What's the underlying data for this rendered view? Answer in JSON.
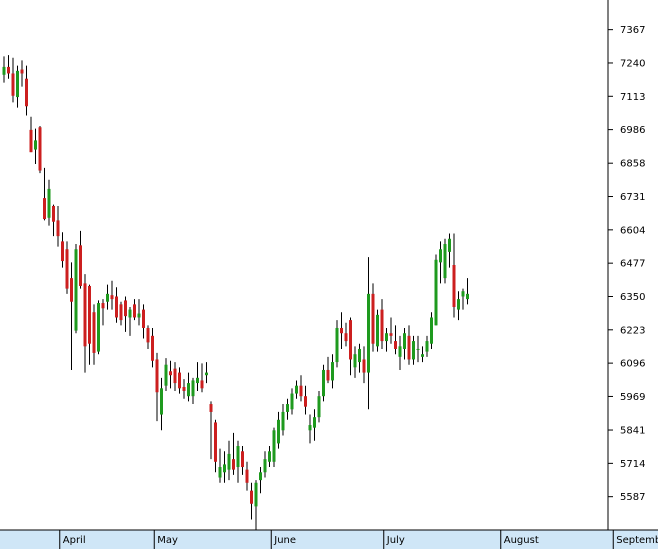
{
  "colors": {
    "background": "#ffffff",
    "up": "#1e9a1e",
    "down": "#cc1f1f",
    "axis": "#000000",
    "month_band": "#cfe6f7"
  },
  "chart_data": {
    "type": "candlestick",
    "title": "",
    "xlabel": "",
    "ylabel": "",
    "ylim": [
      5460,
      7480
    ],
    "grid": false,
    "y_ticks": [
      "7367",
      "7240",
      "7113",
      "6986",
      "6858",
      "6731",
      "6604",
      "6477",
      "6350",
      "6223",
      "6096",
      "5969",
      "5841",
      "5714",
      "5587"
    ],
    "months": [
      {
        "label": "",
        "start": 0
      },
      {
        "label": "April",
        "start": 13
      },
      {
        "label": "May",
        "start": 34
      },
      {
        "label": "June",
        "start": 60
      },
      {
        "label": "July",
        "start": 85
      },
      {
        "label": "August",
        "start": 111
      },
      {
        "label": "September",
        "start": 136
      }
    ],
    "candles": [
      [
        7195,
        7265,
        7165,
        7225
      ],
      [
        7225,
        7270,
        7180,
        7200
      ],
      [
        7200,
        7260,
        7090,
        7115
      ],
      [
        7110,
        7230,
        7070,
        7210
      ],
      [
        7215,
        7250,
        7150,
        7200
      ],
      [
        7180,
        7230,
        7040,
        7075
      ],
      [
        6985,
        7035,
        6900,
        6900
      ],
      [
        6910,
        6990,
        6855,
        6945
      ],
      [
        6995,
        7000,
        6820,
        6830
      ],
      [
        6725,
        6840,
        6640,
        6645
      ],
      [
        6650,
        6795,
        6620,
        6760
      ],
      [
        6695,
        6700,
        6580,
        6635
      ],
      [
        6640,
        6695,
        6540,
        6580
      ],
      [
        6560,
        6595,
        6460,
        6485
      ],
      [
        6530,
        6560,
        6360,
        6380
      ],
      [
        6420,
        6480,
        6070,
        6330
      ],
      [
        6220,
        6550,
        6210,
        6530
      ],
      [
        6545,
        6600,
        6380,
        6390
      ],
      [
        6400,
        6435,
        6060,
        6160
      ],
      [
        6390,
        6395,
        6090,
        6170
      ],
      [
        6290,
        6320,
        6090,
        6135
      ],
      [
        6140,
        6335,
        6130,
        6325
      ],
      [
        6325,
        6340,
        6240,
        6305
      ],
      [
        6330,
        6395,
        6300,
        6360
      ],
      [
        6355,
        6410,
        6300,
        6340
      ],
      [
        6350,
        6385,
        6250,
        6270
      ],
      [
        6320,
        6330,
        6240,
        6260
      ],
      [
        6335,
        6350,
        6215,
        6275
      ],
      [
        6270,
        6310,
        6200,
        6300
      ],
      [
        6320,
        6340,
        6260,
        6270
      ],
      [
        6270,
        6340,
        6240,
        6285
      ],
      [
        6300,
        6320,
        6190,
        6230
      ],
      [
        6230,
        6240,
        6150,
        6175
      ],
      [
        6200,
        6230,
        6080,
        6105
      ],
      [
        6110,
        6135,
        5875,
        5985
      ],
      [
        5900,
        6040,
        5840,
        6000
      ],
      [
        6010,
        6115,
        5990,
        6090
      ],
      [
        6065,
        6105,
        6000,
        6050
      ],
      [
        6075,
        6100,
        5990,
        6020
      ],
      [
        6060,
        6080,
        5980,
        6000
      ],
      [
        6005,
        6035,
        5960,
        5990
      ],
      [
        5970,
        6060,
        5950,
        6020
      ],
      [
        5970,
        6040,
        5940,
        6030
      ],
      [
        6020,
        6100,
        5990,
        6040
      ],
      [
        6030,
        6095,
        5985,
        6000
      ],
      [
        6050,
        6100,
        6020,
        6060
      ],
      [
        5940,
        5950,
        5730,
        5910
      ],
      [
        5870,
        5880,
        5680,
        5720
      ],
      [
        5660,
        5770,
        5640,
        5700
      ],
      [
        5680,
        5760,
        5640,
        5710
      ],
      [
        5690,
        5800,
        5650,
        5750
      ],
      [
        5730,
        5830,
        5670,
        5690
      ],
      [
        5700,
        5800,
        5640,
        5780
      ],
      [
        5760,
        5780,
        5670,
        5700
      ],
      [
        5690,
        5720,
        5610,
        5640
      ],
      [
        5610,
        5640,
        5500,
        5560
      ],
      [
        5550,
        5650,
        5460,
        5640
      ],
      [
        5650,
        5700,
        5600,
        5680
      ],
      [
        5680,
        5760,
        5660,
        5730
      ],
      [
        5720,
        5780,
        5700,
        5760
      ],
      [
        5720,
        5850,
        5700,
        5840
      ],
      [
        5790,
        5910,
        5770,
        5880
      ],
      [
        5840,
        5940,
        5820,
        5910
      ],
      [
        5910,
        5960,
        5880,
        5940
      ],
      [
        5920,
        6000,
        5900,
        5980
      ],
      [
        5980,
        6030,
        5960,
        6010
      ],
      [
        6010,
        6050,
        5950,
        5970
      ],
      [
        5970,
        6010,
        5900,
        5930
      ],
      [
        5840,
        5900,
        5790,
        5860
      ],
      [
        5850,
        5920,
        5800,
        5890
      ],
      [
        5890,
        5990,
        5870,
        5970
      ],
      [
        5970,
        6090,
        5950,
        6070
      ],
      [
        6070,
        6120,
        6020,
        6030
      ],
      [
        6030,
        6130,
        6000,
        6100
      ],
      [
        6100,
        6260,
        6080,
        6230
      ],
      [
        6230,
        6290,
        6150,
        6210
      ],
      [
        6210,
        6250,
        6160,
        6180
      ],
      [
        6260,
        6270,
        6050,
        6110
      ],
      [
        6080,
        6160,
        6040,
        6130
      ],
      [
        6100,
        6170,
        6060,
        6150
      ],
      [
        6110,
        6160,
        6020,
        6060
      ],
      [
        6060,
        6500,
        5920,
        6360
      ],
      [
        6360,
        6400,
        6140,
        6170
      ],
      [
        6160,
        6300,
        6140,
        6280
      ],
      [
        6300,
        6340,
        6150,
        6180
      ],
      [
        6180,
        6230,
        6140,
        6210
      ],
      [
        6210,
        6270,
        6170,
        6200
      ],
      [
        6180,
        6240,
        6130,
        6150
      ],
      [
        6120,
        6200,
        6070,
        6160
      ],
      [
        6150,
        6230,
        6110,
        6210
      ],
      [
        6200,
        6240,
        6090,
        6110
      ],
      [
        6110,
        6200,
        6090,
        6180
      ],
      [
        6150,
        6200,
        6100,
        6150
      ],
      [
        6120,
        6160,
        6100,
        6130
      ],
      [
        6140,
        6200,
        6120,
        6180
      ],
      [
        6170,
        6290,
        6150,
        6270
      ],
      [
        6240,
        6510,
        6240,
        6490
      ],
      [
        6480,
        6560,
        6400,
        6530
      ],
      [
        6420,
        6570,
        6400,
        6550
      ],
      [
        6520,
        6590,
        6460,
        6570
      ],
      [
        6470,
        6590,
        6270,
        6310
      ],
      [
        6300,
        6370,
        6260,
        6340
      ],
      [
        6350,
        6380,
        6300,
        6370
      ],
      [
        6340,
        6420,
        6320,
        6360
      ]
    ]
  }
}
